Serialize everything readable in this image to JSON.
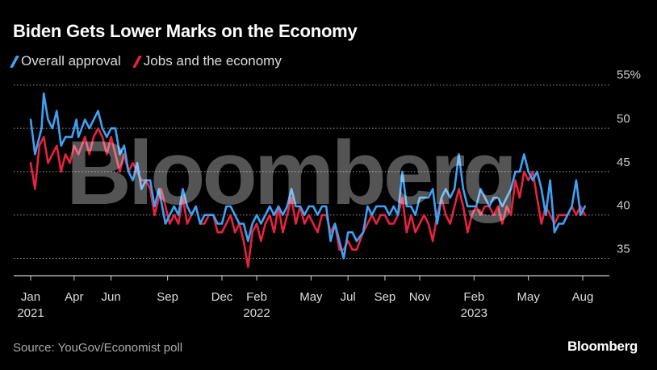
{
  "title": "Biden Gets Lower Marks on the Economy",
  "source": "Source: YouGov/Economist poll",
  "brand": "Bloomberg",
  "watermark": "Bloomberg",
  "chart_data": {
    "type": "line",
    "title": "Biden Gets Lower Marks on the Economy",
    "xlabel": "",
    "ylabel": "",
    "x_range": [
      2021.0,
      2023.58
    ],
    "ylim": [
      33,
      55
    ],
    "y_ticks": [
      35,
      40,
      45,
      50,
      55
    ],
    "y_tick_labels": [
      "35",
      "40",
      "45",
      "50",
      "55%"
    ],
    "x_ticks": [
      {
        "x": 2021.0,
        "label": "Jan",
        "year": "2021"
      },
      {
        "x": 2021.2,
        "label": "Apr",
        "year": ""
      },
      {
        "x": 2021.37,
        "label": "Jun",
        "year": ""
      },
      {
        "x": 2021.63,
        "label": "Sep",
        "year": ""
      },
      {
        "x": 2021.88,
        "label": "Dec",
        "year": ""
      },
      {
        "x": 2022.04,
        "label": "Feb",
        "year": "2022"
      },
      {
        "x": 2022.29,
        "label": "May",
        "year": ""
      },
      {
        "x": 2022.46,
        "label": "Jul",
        "year": ""
      },
      {
        "x": 2022.63,
        "label": "Sep",
        "year": ""
      },
      {
        "x": 2022.79,
        "label": "Nov",
        "year": ""
      },
      {
        "x": 2023.04,
        "label": "Feb",
        "year": "2023"
      },
      {
        "x": 2023.29,
        "label": "May",
        "year": ""
      },
      {
        "x": 2023.54,
        "label": "Aug",
        "year": ""
      }
    ],
    "grid": true,
    "legend_position": "top-left",
    "series": [
      {
        "name": "Overall approval",
        "color": "#3ea2f5",
        "points": [
          [
            2021.0,
            51
          ],
          [
            2021.02,
            47
          ],
          [
            2021.05,
            50
          ],
          [
            2021.06,
            54
          ],
          [
            2021.08,
            51
          ],
          [
            2021.1,
            50
          ],
          [
            2021.12,
            52
          ],
          [
            2021.14,
            48
          ],
          [
            2021.16,
            49
          ],
          [
            2021.19,
            49
          ],
          [
            2021.21,
            51
          ],
          [
            2021.22,
            49
          ],
          [
            2021.25,
            51
          ],
          [
            2021.27,
            50
          ],
          [
            2021.29,
            51
          ],
          [
            2021.31,
            52
          ],
          [
            2021.33,
            50
          ],
          [
            2021.35,
            49
          ],
          [
            2021.37,
            50
          ],
          [
            2021.39,
            50
          ],
          [
            2021.41,
            47
          ],
          [
            2021.43,
            48
          ],
          [
            2021.45,
            45
          ],
          [
            2021.47,
            44
          ],
          [
            2021.49,
            46
          ],
          [
            2021.51,
            43
          ],
          [
            2021.53,
            44
          ],
          [
            2021.55,
            44
          ],
          [
            2021.57,
            41
          ],
          [
            2021.59,
            43
          ],
          [
            2021.62,
            39
          ],
          [
            2021.64,
            40
          ],
          [
            2021.66,
            41
          ],
          [
            2021.68,
            40
          ],
          [
            2021.7,
            43
          ],
          [
            2021.72,
            41
          ],
          [
            2021.74,
            40
          ],
          [
            2021.76,
            41
          ],
          [
            2021.78,
            39
          ],
          [
            2021.8,
            40
          ],
          [
            2021.82,
            40
          ],
          [
            2021.84,
            40
          ],
          [
            2021.86,
            39
          ],
          [
            2021.88,
            39
          ],
          [
            2021.9,
            41
          ],
          [
            2021.92,
            41
          ],
          [
            2021.94,
            40
          ],
          [
            2021.96,
            39
          ],
          [
            2021.98,
            39
          ],
          [
            2022.0,
            37
          ],
          [
            2022.02,
            39
          ],
          [
            2022.04,
            40
          ],
          [
            2022.06,
            39
          ],
          [
            2022.08,
            40
          ],
          [
            2022.1,
            41
          ],
          [
            2022.12,
            40
          ],
          [
            2022.14,
            41
          ],
          [
            2022.16,
            40
          ],
          [
            2022.18,
            41
          ],
          [
            2022.2,
            43
          ],
          [
            2022.22,
            41
          ],
          [
            2022.24,
            41
          ],
          [
            2022.26,
            40
          ],
          [
            2022.28,
            41
          ],
          [
            2022.3,
            41
          ],
          [
            2022.32,
            40
          ],
          [
            2022.34,
            41
          ],
          [
            2022.36,
            41
          ],
          [
            2022.38,
            37
          ],
          [
            2022.4,
            39
          ],
          [
            2022.42,
            37
          ],
          [
            2022.44,
            35
          ],
          [
            2022.46,
            38
          ],
          [
            2022.48,
            38
          ],
          [
            2022.5,
            37
          ],
          [
            2022.53,
            38
          ],
          [
            2022.55,
            41
          ],
          [
            2022.57,
            40
          ],
          [
            2022.59,
            41
          ],
          [
            2022.61,
            41
          ],
          [
            2022.63,
            41
          ],
          [
            2022.65,
            40
          ],
          [
            2022.67,
            41
          ],
          [
            2022.69,
            40
          ],
          [
            2022.71,
            45
          ],
          [
            2022.73,
            41
          ],
          [
            2022.75,
            41
          ],
          [
            2022.77,
            40
          ],
          [
            2022.79,
            42
          ],
          [
            2022.81,
            42
          ],
          [
            2022.83,
            42
          ],
          [
            2022.85,
            43
          ],
          [
            2022.87,
            39
          ],
          [
            2022.89,
            42
          ],
          [
            2022.91,
            43
          ],
          [
            2022.93,
            42
          ],
          [
            2022.95,
            43
          ],
          [
            2022.97,
            47
          ],
          [
            2022.99,
            43
          ],
          [
            2023.01,
            41
          ],
          [
            2023.03,
            41
          ],
          [
            2023.05,
            41
          ],
          [
            2023.07,
            43
          ],
          [
            2023.09,
            42
          ],
          [
            2023.11,
            41
          ],
          [
            2023.13,
            42
          ],
          [
            2023.15,
            42
          ],
          [
            2023.17,
            41
          ],
          [
            2023.19,
            42
          ],
          [
            2023.21,
            43
          ],
          [
            2023.23,
            45
          ],
          [
            2023.25,
            45
          ],
          [
            2023.27,
            47
          ],
          [
            2023.29,
            45
          ],
          [
            2023.31,
            44
          ],
          [
            2023.33,
            45
          ],
          [
            2023.35,
            43
          ],
          [
            2023.37,
            40
          ],
          [
            2023.39,
            44
          ],
          [
            2023.41,
            38
          ],
          [
            2023.43,
            39
          ],
          [
            2023.45,
            39
          ],
          [
            2023.47,
            40
          ],
          [
            2023.49,
            41
          ],
          [
            2023.51,
            44
          ],
          [
            2023.53,
            40
          ],
          [
            2023.55,
            41
          ]
        ]
      },
      {
        "name": "Jobs and the economy",
        "color": "#e8223f",
        "points": [
          [
            2021.0,
            46
          ],
          [
            2021.02,
            43
          ],
          [
            2021.04,
            48
          ],
          [
            2021.06,
            49
          ],
          [
            2021.08,
            46
          ],
          [
            2021.1,
            47
          ],
          [
            2021.12,
            48
          ],
          [
            2021.14,
            45
          ],
          [
            2021.16,
            47
          ],
          [
            2021.18,
            46
          ],
          [
            2021.2,
            48
          ],
          [
            2021.22,
            47
          ],
          [
            2021.25,
            49
          ],
          [
            2021.27,
            47
          ],
          [
            2021.29,
            49
          ],
          [
            2021.31,
            50
          ],
          [
            2021.33,
            49
          ],
          [
            2021.35,
            47
          ],
          [
            2021.37,
            49
          ],
          [
            2021.39,
            47
          ],
          [
            2021.41,
            45
          ],
          [
            2021.43,
            47
          ],
          [
            2021.45,
            45
          ],
          [
            2021.47,
            46
          ],
          [
            2021.49,
            45
          ],
          [
            2021.51,
            44
          ],
          [
            2021.53,
            44
          ],
          [
            2021.55,
            43
          ],
          [
            2021.57,
            40
          ],
          [
            2021.6,
            43
          ],
          [
            2021.62,
            41
          ],
          [
            2021.64,
            39
          ],
          [
            2021.66,
            40
          ],
          [
            2021.68,
            39
          ],
          [
            2021.7,
            42
          ],
          [
            2021.72,
            39
          ],
          [
            2021.74,
            40
          ],
          [
            2021.76,
            41
          ],
          [
            2021.78,
            39
          ],
          [
            2021.8,
            39
          ],
          [
            2021.82,
            40
          ],
          [
            2021.84,
            40
          ],
          [
            2021.86,
            38
          ],
          [
            2021.88,
            38
          ],
          [
            2021.9,
            39
          ],
          [
            2021.92,
            40
          ],
          [
            2021.94,
            38
          ],
          [
            2021.96,
            39
          ],
          [
            2021.98,
            37
          ],
          [
            2022.0,
            34
          ],
          [
            2022.02,
            38
          ],
          [
            2022.04,
            39
          ],
          [
            2022.06,
            37
          ],
          [
            2022.08,
            39
          ],
          [
            2022.1,
            40
          ],
          [
            2022.12,
            38
          ],
          [
            2022.14,
            41
          ],
          [
            2022.16,
            38
          ],
          [
            2022.18,
            40
          ],
          [
            2022.2,
            42
          ],
          [
            2022.22,
            39
          ],
          [
            2022.24,
            41
          ],
          [
            2022.26,
            39
          ],
          [
            2022.28,
            40
          ],
          [
            2022.3,
            39
          ],
          [
            2022.32,
            38
          ],
          [
            2022.34,
            40
          ],
          [
            2022.36,
            40
          ],
          [
            2022.38,
            38
          ],
          [
            2022.4,
            39
          ],
          [
            2022.42,
            36
          ],
          [
            2022.44,
            36
          ],
          [
            2022.46,
            37
          ],
          [
            2022.48,
            36
          ],
          [
            2022.5,
            36
          ],
          [
            2022.53,
            38
          ],
          [
            2022.55,
            39
          ],
          [
            2022.57,
            40
          ],
          [
            2022.59,
            39
          ],
          [
            2022.61,
            40
          ],
          [
            2022.63,
            40
          ],
          [
            2022.65,
            39
          ],
          [
            2022.67,
            39
          ],
          [
            2022.69,
            40
          ],
          [
            2022.71,
            42
          ],
          [
            2022.73,
            38
          ],
          [
            2022.75,
            40
          ],
          [
            2022.77,
            38
          ],
          [
            2022.79,
            39
          ],
          [
            2022.81,
            40
          ],
          [
            2022.83,
            39
          ],
          [
            2022.85,
            37
          ],
          [
            2022.87,
            40
          ],
          [
            2022.89,
            42
          ],
          [
            2022.91,
            40
          ],
          [
            2022.93,
            39
          ],
          [
            2022.95,
            41
          ],
          [
            2022.97,
            43
          ],
          [
            2022.99,
            41
          ],
          [
            2023.01,
            38
          ],
          [
            2023.03,
            40
          ],
          [
            2023.05,
            41
          ],
          [
            2023.07,
            40
          ],
          [
            2023.09,
            41
          ],
          [
            2023.11,
            41
          ],
          [
            2023.13,
            40
          ],
          [
            2023.15,
            41
          ],
          [
            2023.17,
            39
          ],
          [
            2023.19,
            41
          ],
          [
            2023.21,
            40
          ],
          [
            2023.23,
            44
          ],
          [
            2023.25,
            42
          ],
          [
            2023.27,
            45
          ],
          [
            2023.29,
            44
          ],
          [
            2023.31,
            45
          ],
          [
            2023.33,
            42
          ],
          [
            2023.35,
            39
          ],
          [
            2023.37,
            41
          ],
          [
            2023.39,
            40
          ],
          [
            2023.41,
            39
          ],
          [
            2023.43,
            40
          ],
          [
            2023.45,
            40
          ],
          [
            2023.47,
            40
          ],
          [
            2023.49,
            41
          ],
          [
            2023.51,
            40
          ],
          [
            2023.53,
            41
          ],
          [
            2023.55,
            40
          ]
        ]
      }
    ]
  }
}
